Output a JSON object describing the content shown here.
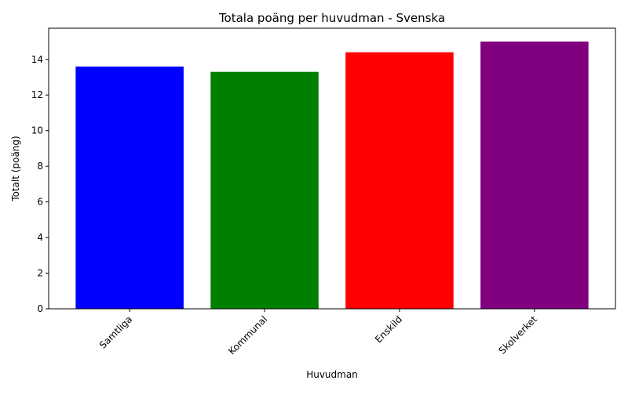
{
  "chart_data": {
    "type": "bar",
    "title": "Totala poäng per huvudman - Svenska",
    "xlabel": "Huvudman",
    "ylabel": "Totalt (poäng)",
    "categories": [
      "Samtliga",
      "Kommunal",
      "Enskild",
      "Skolverket"
    ],
    "values": [
      13.6,
      13.3,
      14.4,
      15.0
    ],
    "colors": [
      "#0000ff",
      "#008000",
      "#ff0000",
      "#800080"
    ],
    "ylim": [
      0,
      15.75
    ],
    "yticks": [
      0,
      2,
      4,
      6,
      8,
      10,
      12,
      14
    ],
    "grid": false,
    "legend": "none"
  }
}
